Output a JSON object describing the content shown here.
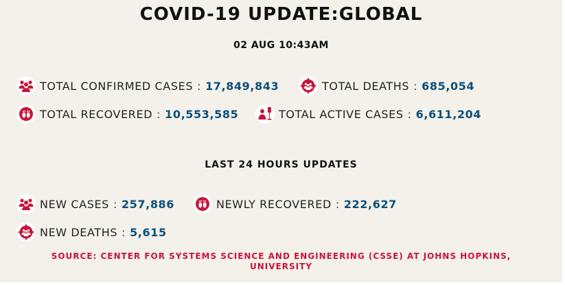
{
  "title": "COVID-19 UPDATE:GLOBAL",
  "timestamp": "02 AUG 10:43AM",
  "totals": {
    "confirmed": {
      "label": "TOTAL CONFIRMED CASES",
      "value": "17,849,843",
      "icon": "people-group-icon"
    },
    "deaths": {
      "label": "TOTAL DEATHS",
      "value": "685,054",
      "icon": "virus-people-icon"
    },
    "recovered": {
      "label": "TOTAL RECOVERED",
      "value": "10,553,585",
      "icon": "footprints-icon"
    },
    "active": {
      "label": "TOTAL ACTIVE CASES",
      "value": "6,611,204",
      "icon": "patient-iv-icon"
    }
  },
  "last24": {
    "title": "LAST 24 HOURS UPDATES",
    "new_cases": {
      "label": "NEW CASES",
      "value": "257,886",
      "icon": "people-group-icon"
    },
    "newly_recovered": {
      "label": "NEWLY RECOVERED",
      "value": "222,627",
      "icon": "footprints-icon"
    },
    "new_deaths": {
      "label": "NEW DEATHS",
      "value": "5,615",
      "icon": "virus-people-icon"
    }
  },
  "separator": ":",
  "source": {
    "line1": "SOURCE: CENTER FOR SYSTEMS SCIENCE AND ENGINEERING (CSSE) AT JOHNS HOPKINS,",
    "line2": "UNIVERSITY"
  },
  "colors": {
    "background": "#f3f1ea",
    "value": "#0d4f7c",
    "icon": "#c8143a",
    "source": "#c8143a"
  }
}
